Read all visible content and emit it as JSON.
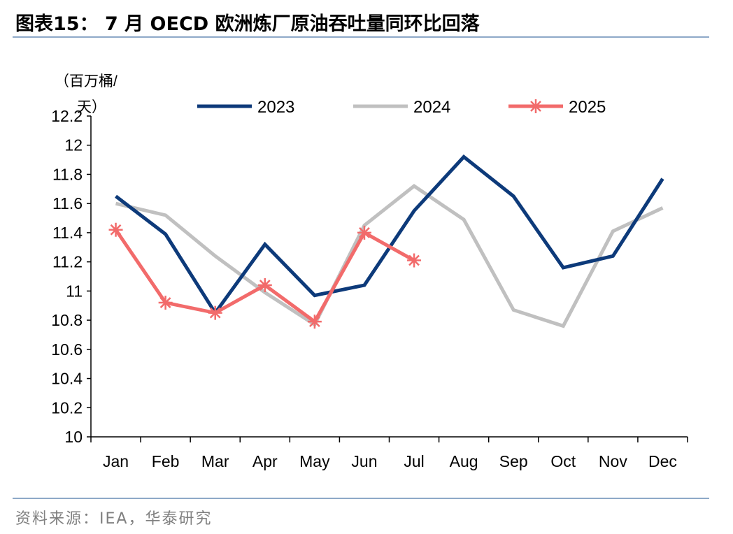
{
  "title": "图表15： 7 月 OECD 欧洲炼厂原油吞吐量同环比回落",
  "source": "资料来源：IEA，华泰研究",
  "chart_data": {
    "type": "line",
    "unit_label_line1": "（百万桶/",
    "unit_label_line2": "天）",
    "categories": [
      "Jan",
      "Feb",
      "Mar",
      "Apr",
      "May",
      "Jun",
      "Jul",
      "Aug",
      "Sep",
      "Oct",
      "Nov",
      "Dec"
    ],
    "ylim": [
      10,
      12.2
    ],
    "yticks": [
      "10",
      "10.2",
      "10.4",
      "10.6",
      "10.8",
      "11",
      "11.2",
      "11.4",
      "11.6",
      "11.8",
      "12",
      "12.2"
    ],
    "legend_position": "top",
    "series": [
      {
        "name": "2023",
        "color": "#0d3a7a",
        "marker": "none",
        "values": [
          11.65,
          11.39,
          10.85,
          11.32,
          10.97,
          11.04,
          11.55,
          11.92,
          11.65,
          11.16,
          11.24,
          11.77
        ]
      },
      {
        "name": "2024",
        "color": "#c0c0c0",
        "marker": "none",
        "values": [
          11.6,
          11.52,
          11.24,
          10.99,
          10.77,
          11.45,
          11.72,
          11.49,
          10.87,
          10.76,
          11.41,
          11.57
        ]
      },
      {
        "name": "2025",
        "color": "#f26b6b",
        "marker": "asterisk",
        "values": [
          11.42,
          10.92,
          10.85,
          11.04,
          10.79,
          11.4,
          11.21,
          null,
          null,
          null,
          null,
          null
        ]
      }
    ]
  }
}
